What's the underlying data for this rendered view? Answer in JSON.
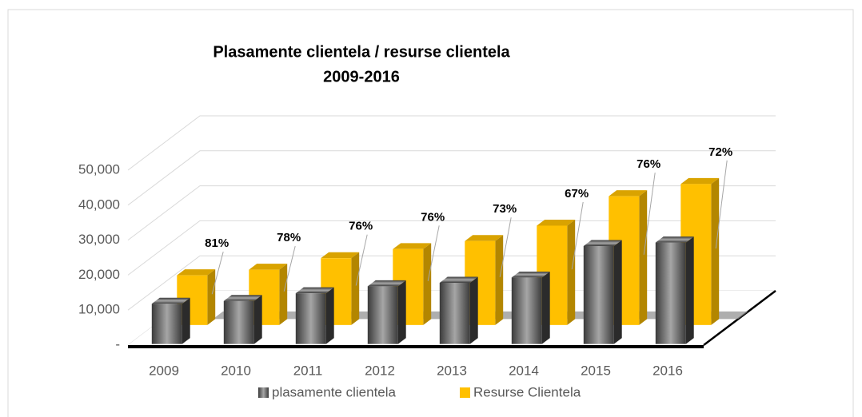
{
  "chart_data": {
    "type": "bar3d",
    "title": "Plasamente clientela / resurse clientela",
    "subtitle": "2009-2016",
    "categories": [
      "2009",
      "2010",
      "2011",
      "2012",
      "2013",
      "2014",
      "2015",
      "2016"
    ],
    "series": [
      {
        "name": "plasamente clientela",
        "color": "#7f7f7f",
        "values": [
          11500,
          12300,
          14500,
          16500,
          17500,
          19000,
          28000,
          29000
        ]
      },
      {
        "name": "Resurse Clientela",
        "color": "#ffc000",
        "values": [
          14200,
          15800,
          19100,
          21700,
          24000,
          28400,
          36800,
          40300
        ]
      }
    ],
    "data_labels": [
      "81%",
      "78%",
      "76%",
      "76%",
      "73%",
      "67%",
      "76%",
      "72%"
    ],
    "ylim": [
      0,
      50000
    ],
    "yticks": [
      {
        "value": 0,
        "label": "-"
      },
      {
        "value": 10000,
        "label": "10,000"
      },
      {
        "value": 20000,
        "label": "20,000"
      },
      {
        "value": 30000,
        "label": "30,000"
      },
      {
        "value": 40000,
        "label": "40,000"
      },
      {
        "value": 50000,
        "label": "50,000"
      }
    ],
    "grid": true,
    "legend": "bottom"
  }
}
